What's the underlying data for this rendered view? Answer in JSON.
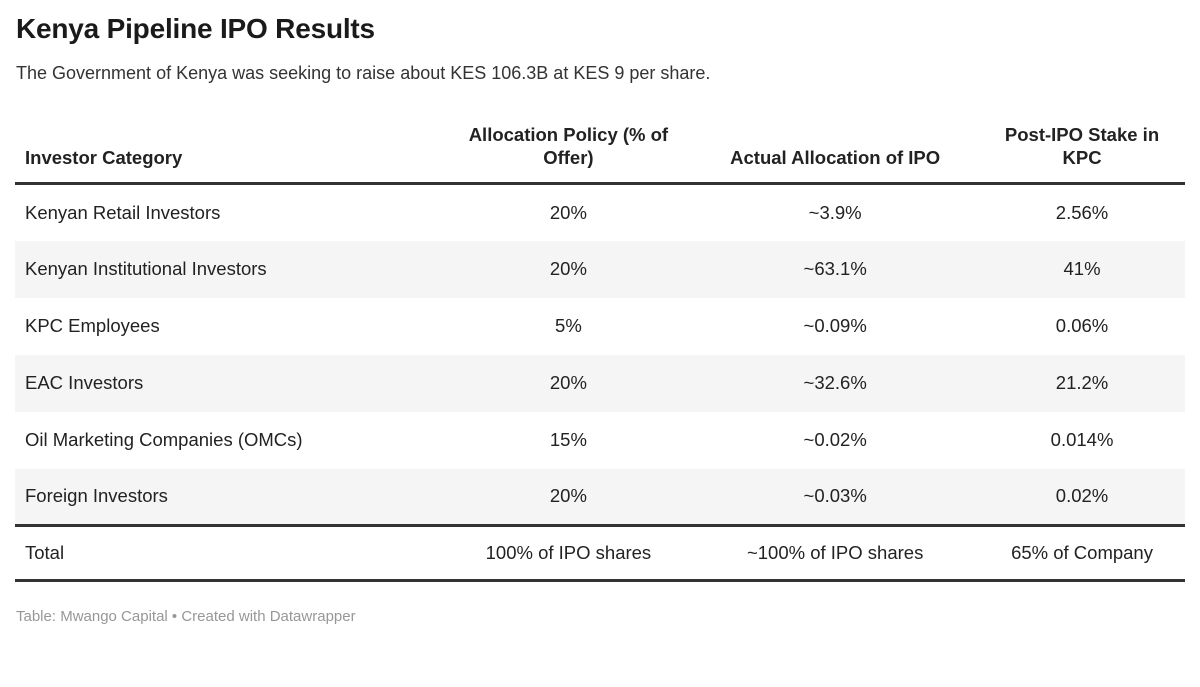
{
  "chart_data": {
    "type": "table",
    "title": "Kenya Pipeline IPO Results",
    "subtitle": "The Government of Kenya was seeking to raise about KES 106.3B at KES 9 per share.",
    "columns": [
      "Investor Category",
      "Allocation Policy (% of Offer)",
      "Actual Allocation of IPO",
      "Post-IPO Stake in KPC"
    ],
    "rows": [
      [
        "Kenyan Retail Investors",
        "20%",
        "~3.9%",
        "2.56%"
      ],
      [
        "Kenyan Institutional Investors",
        "20%",
        "~63.1%",
        "41%"
      ],
      [
        "KPC Employees",
        "5%",
        "~0.09%",
        "0.06%"
      ],
      [
        "EAC Investors",
        "20%",
        "~32.6%",
        "21.2%"
      ],
      [
        "Oil Marketing Companies (OMCs)",
        "15%",
        "~0.02%",
        "0.014%"
      ],
      [
        "Foreign Investors",
        "20%",
        "~0.03%",
        "0.02%"
      ]
    ],
    "total_row": [
      "Total",
      "100% of IPO shares",
      "~100% of IPO shares",
      "65% of Company"
    ],
    "credit": "Table: Mwango Capital • Created with Datawrapper",
    "layout": {
      "stripe_rows": "even rows shaded",
      "value_columns_align": "center",
      "first_column_align": "left",
      "grid": "horizontal rules only"
    }
  },
  "colors": {
    "title_text": "#1a1a1a",
    "body_text": "#222222",
    "subtitle_text": "#333333",
    "footer_text": "#979797",
    "row_stripe": "#f5f5f5",
    "rule": "#333333",
    "background": "#ffffff"
  }
}
